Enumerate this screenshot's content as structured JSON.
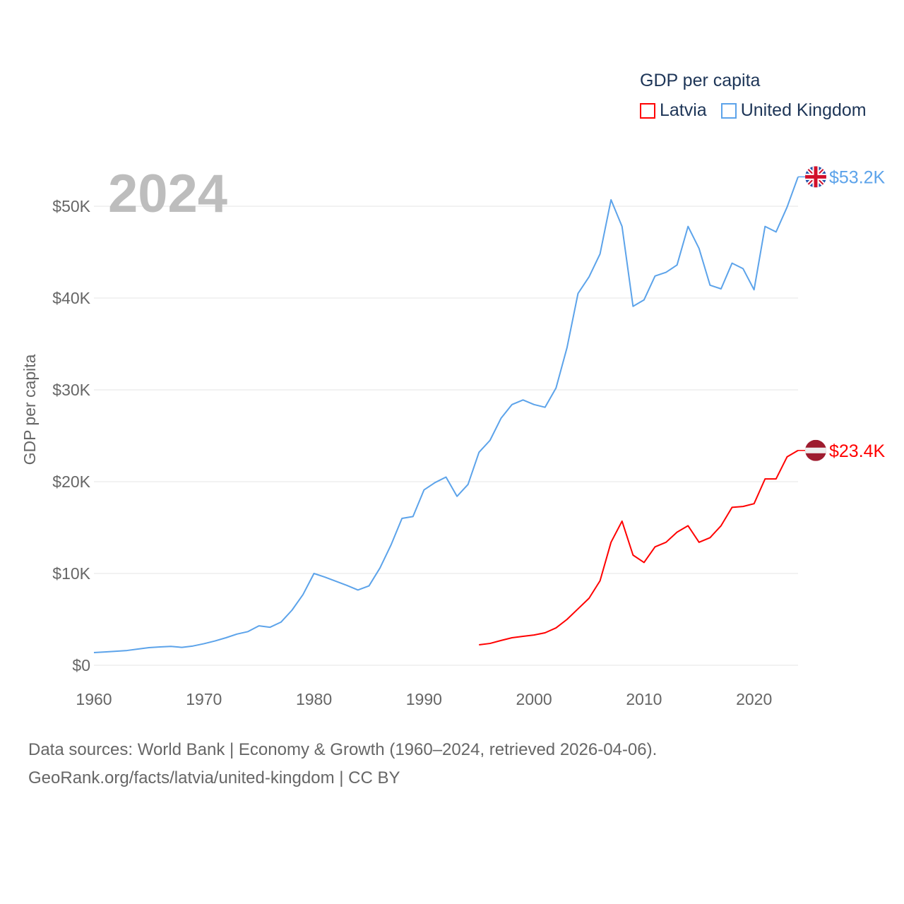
{
  "chart_data": {
    "type": "line",
    "title": "",
    "year_label": "2024",
    "legend_title": "GDP per capita",
    "legend_position": "top-right",
    "xlabel": "",
    "ylabel": "GDP per capita",
    "xlim": [
      1960,
      2024
    ],
    "ylim": [
      0,
      50000
    ],
    "x_ticks": [
      1960,
      1970,
      1980,
      1990,
      2000,
      2010,
      2020
    ],
    "x_tick_labels": [
      "1960",
      "1970",
      "1980",
      "1990",
      "2000",
      "2010",
      "2020"
    ],
    "y_ticks": [
      0,
      10000,
      20000,
      30000,
      40000,
      50000
    ],
    "y_tick_labels": [
      "$0",
      "$10K",
      "$20K",
      "$30K",
      "$40K",
      "$50K"
    ],
    "grid": true,
    "series": [
      {
        "name": "Latvia",
        "color": "#ff0000",
        "flag": "latvia-flag",
        "end_label": "$23.4K",
        "start_year": 1995,
        "values": [
          2230,
          2380,
          2700,
          3000,
          3150,
          3300,
          3540,
          4070,
          5000,
          6150,
          7300,
          9200,
          13400,
          15700,
          12000,
          11200,
          12900,
          13400,
          14500,
          15200,
          13400,
          13900,
          15200,
          17200,
          17300,
          17600,
          20300,
          20300,
          22700,
          23400
        ]
      },
      {
        "name": "United Kingdom",
        "color": "#5ca3ea",
        "flag": "uk-flag",
        "end_label": "$53.2K",
        "start_year": 1960,
        "values": [
          1380,
          1450,
          1530,
          1610,
          1770,
          1920,
          2000,
          2060,
          1950,
          2100,
          2350,
          2650,
          3000,
          3400,
          3670,
          4300,
          4140,
          4700,
          6000,
          7700,
          10000,
          9600,
          9150,
          8700,
          8200,
          8650,
          10600,
          13100,
          16000,
          16200,
          19100,
          19900,
          20500,
          18400,
          19700,
          23200,
          24500,
          26900,
          28400,
          28900,
          28400,
          28100,
          30200,
          34600,
          40500,
          42300,
          44800,
          50700,
          47800,
          39100,
          39800,
          42400,
          42800,
          43600,
          47800,
          45400,
          41400,
          41000,
          43800,
          43200,
          40900,
          47800,
          47200,
          49900,
          53200
        ]
      }
    ]
  },
  "footer": {
    "line1": "Data sources: World Bank | Economy & Growth (1960–2024, retrieved 2026-04-06).",
    "line2": "GeoRank.org/facts/latvia/united-kingdom | CC BY"
  }
}
